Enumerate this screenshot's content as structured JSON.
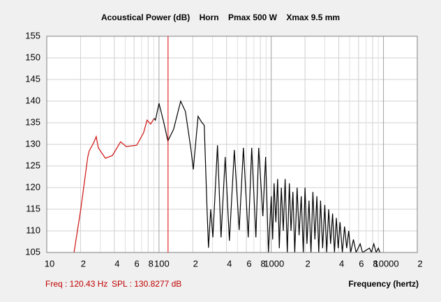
{
  "chart_data": {
    "type": "line",
    "title": "Acoustical Power (dB)    Horn    Pmax 500 W    Xmax 9.5 mm",
    "x_label": "Frequency (hertz)",
    "log_x": true,
    "grid": true,
    "xlim": [
      10,
      20000
    ],
    "ylim": [
      105,
      155
    ],
    "yticks": [
      105,
      110,
      115,
      120,
      125,
      130,
      135,
      140,
      145,
      150,
      155
    ],
    "xticks": [
      10,
      {
        "value": 20,
        "label": "2"
      },
      {
        "value": 40,
        "label": "4"
      },
      {
        "value": 60,
        "label": "6"
      },
      {
        "value": 80,
        "label": "8"
      },
      100,
      {
        "value": 200,
        "label": "2"
      },
      {
        "value": 400,
        "label": "4"
      },
      {
        "value": 600,
        "label": "6"
      },
      {
        "value": 800,
        "label": "8"
      },
      1000,
      {
        "value": 2000,
        "label": "2"
      },
      {
        "value": 4000,
        "label": "4"
      },
      {
        "value": 6000,
        "label": "6"
      },
      {
        "value": 8000,
        "label": "8"
      },
      10000,
      {
        "value": 20000,
        "label": "2"
      }
    ],
    "x_minor_grid": [
      30,
      50,
      70,
      90,
      300,
      500,
      700,
      900,
      3000,
      5000,
      7000,
      9000
    ],
    "cursor": {
      "x": 120.43,
      "label": "Freq : 120.43 Hz",
      "spl": 130.8277,
      "spl_label": "SPL : 130.8277 dB",
      "color": "#e00000"
    },
    "series": [
      {
        "color": "#d01010",
        "x": [
          17.5,
          20.1,
          23.2,
          23.9,
          26.1,
          27.6,
          28.8,
          33.3,
          38.4,
          45.5,
          51.1,
          63.3,
          72.9,
          78.3,
          84.1,
          90.5
        ],
        "values": [
          105,
          115,
          127.1,
          128.5,
          130.3,
          131.8,
          129.2,
          126.8,
          127.4,
          130.6,
          129.5,
          129.8,
          132.7,
          135.6,
          134.7,
          136
        ]
      },
      {
        "color": "#000000",
        "x": [
          90.5,
          93,
          100,
          110,
          120,
          135,
          156,
          172,
          193,
          202,
          223,
          239,
          253,
          268,
          276,
          289,
          302,
          332,
          357,
          389,
          424,
          469,
          518,
          565,
          624,
          670,
          730,
          773,
          842,
          891,
          944,
          1000,
          1030,
          1060,
          1100,
          1140,
          1180,
          1230,
          1280,
          1330,
          1390,
          1450,
          1500,
          1560,
          1620,
          1700,
          1770,
          1850,
          1930,
          2000,
          2080,
          2170,
          2260,
          2350,
          2450,
          2550,
          2650,
          2750,
          2870,
          3000,
          3120,
          3250,
          3380,
          3520,
          3660,
          3800,
          3950,
          4100,
          4300,
          4500,
          4700,
          4900,
          5100,
          5400,
          5700,
          6200,
          6500,
          7500,
          7800,
          8200,
          8600,
          9000,
          9300
        ],
        "values": [
          136,
          135.6,
          139.5,
          135.2,
          130.8,
          133.5,
          140,
          137.6,
          128.7,
          124.2,
          136.5,
          135.2,
          134.4,
          115,
          106.1,
          115,
          108.5,
          129.8,
          108.5,
          127.1,
          107.7,
          128.7,
          110.2,
          129.2,
          108.5,
          129.2,
          108.5,
          129.2,
          113.4,
          127.1,
          105,
          118,
          108,
          121,
          112,
          122,
          106,
          120,
          110,
          122,
          105,
          121,
          110,
          119,
          105,
          120,
          109,
          118,
          105,
          120,
          107,
          117,
          105,
          119,
          108,
          118,
          105,
          117,
          106,
          116,
          105,
          115,
          107,
          114,
          105,
          113,
          106,
          112,
          105,
          111,
          106,
          110,
          105,
          108,
          105,
          107,
          105,
          106,
          105,
          107,
          105,
          106,
          105
        ]
      }
    ]
  }
}
